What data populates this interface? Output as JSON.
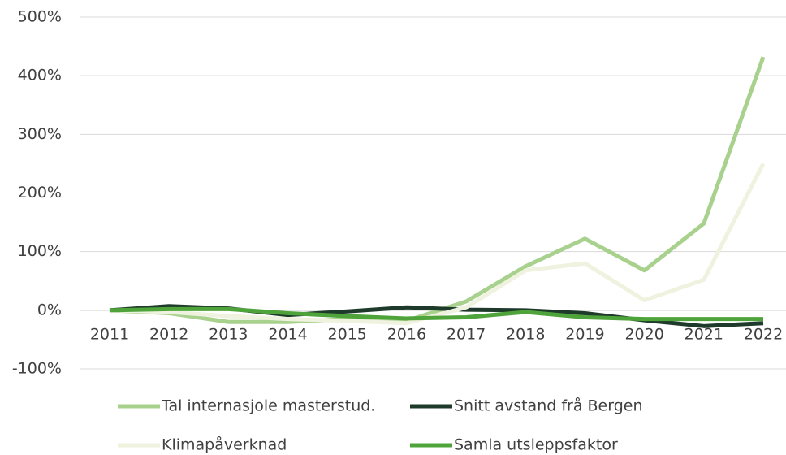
{
  "chart_data": {
    "type": "line",
    "categories": [
      "2011",
      "2012",
      "2013",
      "2014",
      "2015",
      "2016",
      "2017",
      "2018",
      "2019",
      "2020",
      "2021",
      "2022"
    ],
    "series": [
      {
        "name": "Tal internasjole masterstud.",
        "color": "#a9d18e",
        "values": [
          0,
          -5,
          -20,
          -20,
          -15,
          -18,
          15,
          75,
          122,
          68,
          148,
          432
        ]
      },
      {
        "name": "Snitt avstand frå Bergen",
        "color": "#1e3a2a",
        "values": [
          0,
          7,
          3,
          -8,
          -2,
          5,
          1,
          0,
          -5,
          -17,
          -27,
          -22
        ]
      },
      {
        "name": "Klimapåverknad",
        "color": "#eef2de",
        "values": [
          0,
          -3,
          -10,
          -15,
          -18,
          -22,
          5,
          68,
          80,
          17,
          52,
          250
        ]
      },
      {
        "name": "Samla utsleppsfaktor",
        "color": "#4ea43a",
        "values": [
          0,
          2,
          2,
          -5,
          -10,
          -14,
          -12,
          -3,
          -12,
          -15,
          -15,
          -15
        ]
      }
    ],
    "ylim": [
      -100,
      500
    ],
    "yticks": [
      {
        "value": -100,
        "label": "-100%"
      },
      {
        "value": 0,
        "label": "0%"
      },
      {
        "value": 100,
        "label": "100%"
      },
      {
        "value": 200,
        "label": "200%"
      },
      {
        "value": 300,
        "label": "300%"
      },
      {
        "value": 400,
        "label": "400%"
      },
      {
        "value": 500,
        "label": "500%"
      }
    ],
    "grid": true,
    "legend": "bottom"
  }
}
